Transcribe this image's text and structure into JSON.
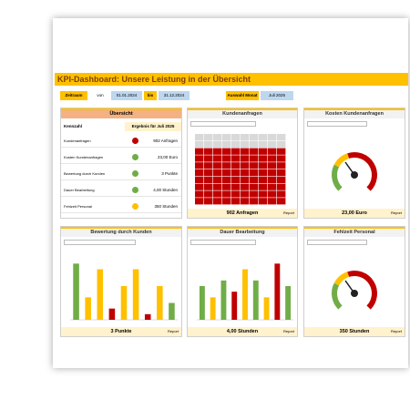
{
  "header": {
    "title": "KPI-Dashboard: Unsere Leistung in der Übersicht"
  },
  "filters": {
    "period_label": "Zeitraum",
    "from_label": "von",
    "from": "01.01.2024",
    "to_label": "bis",
    "to": "31.12.2024",
    "month_label": "Auswahl Monat",
    "month": "Juli 2025"
  },
  "overview": {
    "title": "Übersicht",
    "columns": [
      "Kennzahl",
      "Ergebnis für Juli 2025"
    ],
    "rows": [
      {
        "label": "Kundenanfragen",
        "status": "#c00000",
        "result": "902 Anfragen"
      },
      {
        "label": "Kosten Kundenanfragen",
        "status": "#70ad47",
        "result": "23,00 Euro"
      },
      {
        "label": "Bewertung durch Kunden",
        "status": "#70ad47",
        "result": "3 Punkte"
      },
      {
        "label": "Dauer Bearbeitung",
        "status": "#70ad47",
        "result": "4,00 Stunden"
      },
      {
        "label": "Fehlzeit Personal",
        "status": "#ffc000",
        "result": "350 Stunden"
      }
    ]
  },
  "panels": [
    {
      "title": "Kundenanfragen",
      "kind": "waffle",
      "result": "902 Anfragen",
      "footer": "Report"
    },
    {
      "title": "Kosten Kundenanfragen",
      "kind": "gauge",
      "result": "23,00 Euro",
      "footer": "Report"
    },
    {
      "title": "Bewertung durch Kunden",
      "kind": "bars",
      "result": "3 Punkte",
      "footer": "Report",
      "bars": {
        "values": [
          10,
          4,
          9,
          2,
          6,
          9,
          1,
          6,
          3
        ],
        "colors": [
          "#70ad47",
          "#ffc000",
          "#ffc000",
          "#c00000",
          "#ffc000",
          "#ffc000",
          "#c00000",
          "#ffc000",
          "#70ad47"
        ],
        "ylim": [
          0,
          12
        ]
      }
    },
    {
      "title": "Dauer Bearbeitung",
      "kind": "bars",
      "result": "4,00 Stunden",
      "footer": "Report",
      "bars": {
        "values": [
          6,
          4,
          7,
          5,
          9,
          7,
          4,
          10,
          6
        ],
        "colors": [
          "#70ad47",
          "#ffc000",
          "#70ad47",
          "#c00000",
          "#ffc000",
          "#70ad47",
          "#ffc000",
          "#c00000",
          "#70ad47"
        ],
        "ylim": [
          0,
          12
        ]
      }
    },
    {
      "title": "Fehlzeit Personal",
      "kind": "gauge",
      "result": "350 Stunden",
      "footer": "Report"
    }
  ]
}
